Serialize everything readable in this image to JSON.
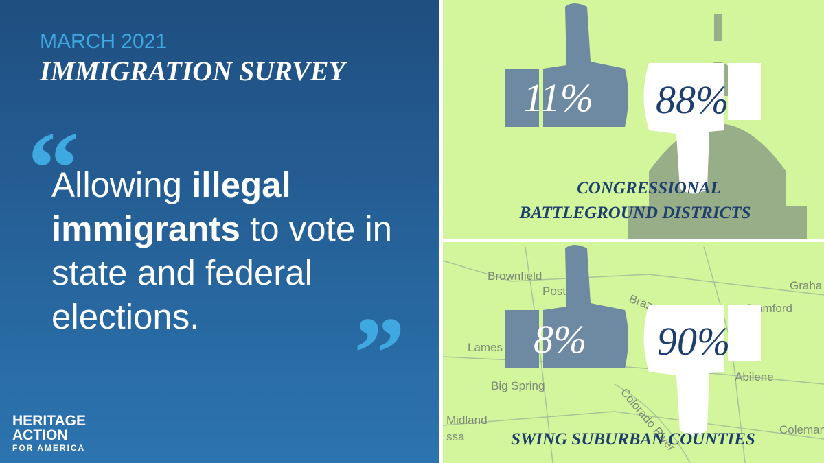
{
  "header": {
    "date": "MARCH 2021",
    "title": "IMMIGRATION SURVEY"
  },
  "quote": {
    "before": "Allowing",
    "emphasis": "illegal immigrants",
    "after": "to vote in state and federal elections."
  },
  "logo": {
    "line1": "HERITAGE",
    "line2": "ACTION",
    "line3": "FOR AMERICA"
  },
  "panels": [
    {
      "approve": "11%",
      "disapprove": "88%",
      "label_line1": "CONGRESSIONAL",
      "label_line2": "BATTLEGROUND DISTRICTS"
    },
    {
      "approve": "8%",
      "disapprove": "90%",
      "label_line1": "SWING SUBURBAN COUNTIES"
    }
  ],
  "map_labels": [
    "Brownfield",
    "Post",
    "Brazos",
    "Stamford",
    "Graha",
    "Lames",
    "Big Spring",
    "Abilene",
    "Midland",
    "ssa",
    "Colorado River",
    "Coleman"
  ]
}
